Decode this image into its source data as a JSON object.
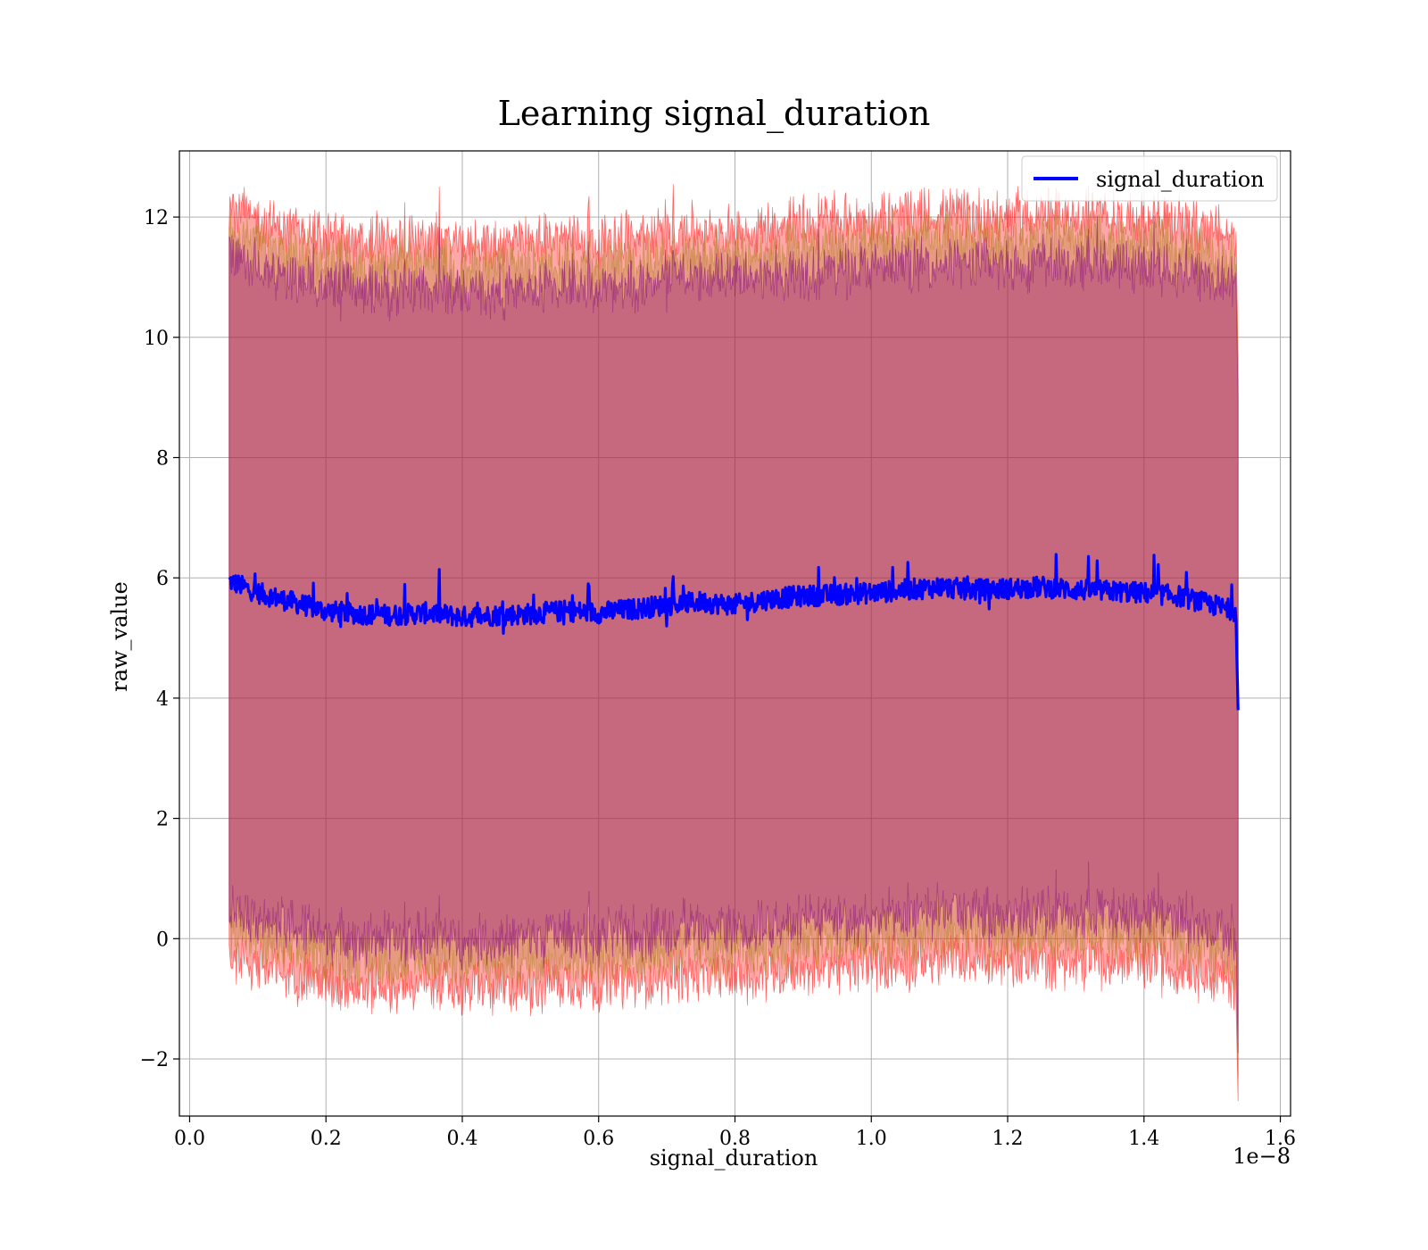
{
  "chart_data": {
    "type": "line",
    "title": "Learning signal_duration",
    "xlabel": "signal_duration",
    "ylabel": "raw_value",
    "x_offset_text": "1e−8",
    "xlim": [
      -0.015,
      1.615
    ],
    "ylim": [
      -2.95,
      13.1
    ],
    "x_ticks": [
      0.0,
      0.2,
      0.4,
      0.6,
      0.8,
      1.0,
      1.2,
      1.4,
      1.6
    ],
    "x_tick_labels": [
      "0.0",
      "0.2",
      "0.4",
      "0.6",
      "0.8",
      "1.0",
      "1.2",
      "1.4",
      "1.6"
    ],
    "y_ticks": [
      -2,
      0,
      2,
      4,
      6,
      8,
      10,
      12
    ],
    "y_tick_labels": [
      "−2",
      "0",
      "2",
      "4",
      "6",
      "8",
      "10",
      "12"
    ],
    "grid": true,
    "legend": {
      "placement": "top-right",
      "entries": [
        "signal_duration"
      ]
    },
    "colors": {
      "line": "#0000ff",
      "inner_band": "#800080",
      "middle_band": "#b08020",
      "outer_band": "#ff0000"
    },
    "x_start": 0.058,
    "x_end": 1.538,
    "series": [
      {
        "name": "signal_duration",
        "x": [
          0.058,
          0.1,
          0.15,
          0.2,
          0.25,
          0.3,
          0.35,
          0.4,
          0.45,
          0.5,
          0.55,
          0.6,
          0.65,
          0.7,
          0.75,
          0.8,
          0.85,
          0.9,
          0.95,
          1.0,
          1.05,
          1.1,
          1.15,
          1.2,
          1.25,
          1.3,
          1.35,
          1.4,
          1.45,
          1.5,
          1.535,
          1.538
        ],
        "values": [
          5.95,
          5.75,
          5.6,
          5.45,
          5.4,
          5.38,
          5.42,
          5.35,
          5.38,
          5.4,
          5.45,
          5.42,
          5.48,
          5.55,
          5.6,
          5.55,
          5.65,
          5.7,
          5.72,
          5.75,
          5.8,
          5.85,
          5.8,
          5.82,
          5.85,
          5.8,
          5.78,
          5.75,
          5.7,
          5.55,
          5.45,
          3.8
        ]
      }
    ],
    "bands": [
      {
        "name": "outer",
        "half_width": 6.2
      },
      {
        "name": "middle",
        "half_width": 5.8
      },
      {
        "name": "inner",
        "half_width": 5.4
      }
    ]
  }
}
